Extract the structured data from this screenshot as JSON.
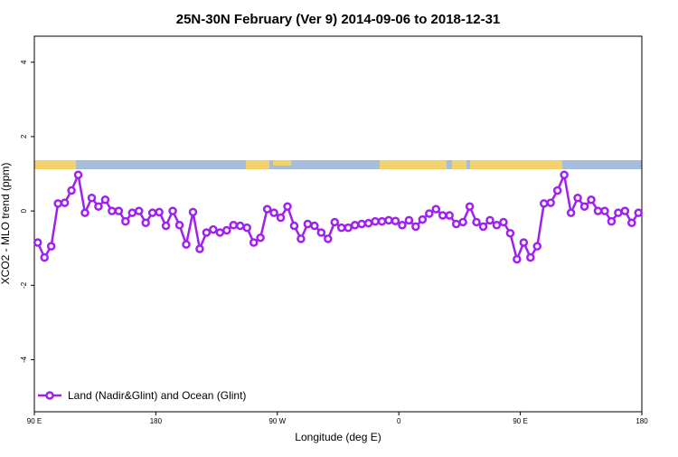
{
  "chart_data": {
    "type": "line",
    "title": "25N-30N February (Ver 9)   2014-09-06 to 2018-12-31",
    "x_label": "Longitude (deg E)",
    "y_label": "XCO2 - MLO trend (ppm)",
    "xlim": [
      90,
      540
    ],
    "ylim": [
      -5.4,
      4.7
    ],
    "xticks": [
      {
        "value": 90,
        "label": "90 E"
      },
      180,
      {
        "value": 270,
        "label": "90 W"
      },
      {
        "value": 360,
        "label": "0"
      },
      {
        "value": 450,
        "label": "90 E"
      },
      {
        "value": 540,
        "label": "180"
      }
    ],
    "yticks": [
      -4,
      -2,
      0,
      2,
      4
    ],
    "legend": "bottom-left",
    "x": [
      92.5,
      97.5,
      102.5,
      107.5,
      112.5,
      117.5,
      122.5,
      127.5,
      132.5,
      137.5,
      142.5,
      147.5,
      152.5,
      157.5,
      162.5,
      167.5,
      172.5,
      177.5,
      182.5,
      187.5,
      192.5,
      197.5,
      202.5,
      207.5,
      212.5,
      217.5,
      222.5,
      227.5,
      232.5,
      237.5,
      242.5,
      247.5,
      252.5,
      257.5,
      262.5,
      267.5,
      272.5,
      277.5,
      282.5,
      287.5,
      292.5,
      297.5,
      302.5,
      307.5,
      312.5,
      317.5,
      322.5,
      327.5,
      332.5,
      337.5,
      342.5,
      347.5,
      352.5,
      357.5,
      362.5,
      367.5,
      372.5,
      377.5,
      382.5,
      387.5,
      392.5,
      397.5,
      402.5,
      407.5,
      412.5,
      417.5,
      422.5,
      427.5,
      432.5,
      437.5,
      442.5,
      447.5,
      452.5,
      457.5,
      462.5,
      467.5,
      472.5,
      477.5,
      482.5,
      487.5,
      492.5,
      497.5,
      502.5,
      507.5,
      512.5,
      517.5,
      522.5,
      527.5,
      532.5,
      537.5
    ],
    "series": [
      {
        "name": "Land (Nadir&Glint) and Ocean (Glint)",
        "color": "#a020f0",
        "values": [
          -0.85,
          -1.25,
          -0.95,
          0.2,
          0.22,
          0.55,
          0.97,
          -0.05,
          0.35,
          0.12,
          0.3,
          0.0,
          0.0,
          -0.28,
          -0.05,
          0.0,
          -0.32,
          -0.05,
          -0.03,
          -0.4,
          0.0,
          -0.38,
          -0.9,
          -0.03,
          -1.02,
          -0.58,
          -0.5,
          -0.58,
          -0.52,
          -0.38,
          -0.4,
          -0.45,
          -0.85,
          -0.72,
          0.05,
          -0.05,
          -0.18,
          0.12,
          -0.4,
          -0.75,
          -0.35,
          -0.4,
          -0.58,
          -0.75,
          -0.3,
          -0.45,
          -0.45,
          -0.38,
          -0.35,
          -0.33,
          -0.28,
          -0.28,
          -0.25,
          -0.27,
          -0.38,
          -0.25,
          -0.42,
          -0.23,
          -0.07,
          0.05,
          -0.12,
          -0.12,
          -0.35,
          -0.3,
          0.12,
          -0.3,
          -0.42,
          -0.25,
          -0.38,
          -0.3,
          -0.6,
          -1.3,
          -0.85,
          -1.25,
          -0.95,
          0.2,
          0.22,
          0.55,
          0.97,
          -0.05,
          0.35,
          0.12,
          0.3,
          0.0,
          0.0,
          -0.28,
          -0.05,
          0.0,
          -0.32,
          -0.05
        ]
      }
    ]
  }
}
